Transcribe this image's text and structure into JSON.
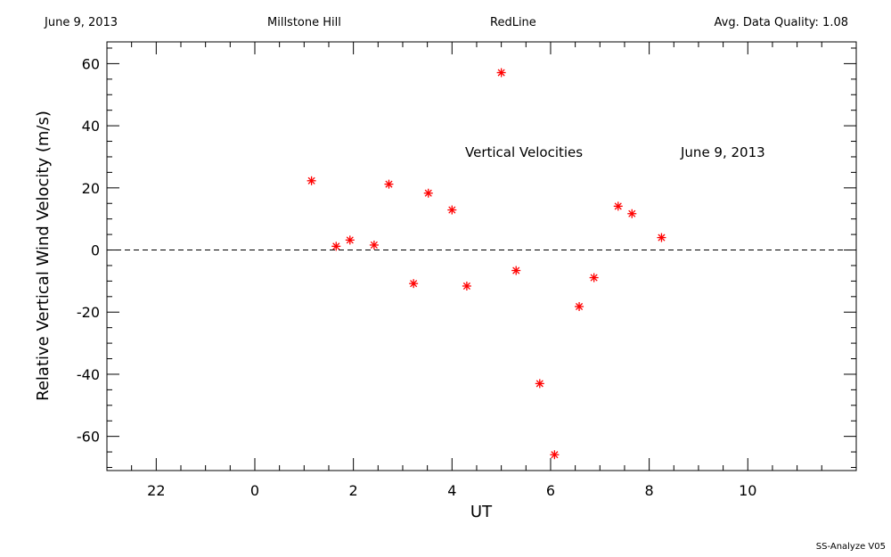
{
  "header": {
    "date": "June 9, 2013",
    "site": "Millstone Hill",
    "line": "RedLine",
    "quality": "Avg. Data Quality: 1.08"
  },
  "footer": "SS-Analyze V05",
  "chart_data": {
    "type": "scatter",
    "xlabel": "UT",
    "ylabel": "Relative Vertical Wind Velocity (m/s)",
    "annotations": [
      "Vertical Velocities",
      "June 9, 2013"
    ],
    "x_tick_labels": [
      "22",
      "0",
      "2",
      "4",
      "6",
      "8",
      "10"
    ],
    "y_ticks": [
      -60,
      -40,
      -20,
      0,
      20,
      40,
      60
    ],
    "xlim": [
      -3,
      12.2
    ],
    "ylim": [
      -71,
      67
    ],
    "zero_line": true,
    "marker_color": "#ff0000",
    "marker": "asterisk",
    "points": [
      {
        "x": 1.15,
        "y": 22.3
      },
      {
        "x": 1.65,
        "y": 1.2
      },
      {
        "x": 1.93,
        "y": 3.2
      },
      {
        "x": 2.42,
        "y": 1.6
      },
      {
        "x": 2.72,
        "y": 21.2
      },
      {
        "x": 3.22,
        "y": -10.8
      },
      {
        "x": 3.52,
        "y": 18.3
      },
      {
        "x": 4.0,
        "y": 12.9
      },
      {
        "x": 4.3,
        "y": -11.6
      },
      {
        "x": 5.0,
        "y": 57.1
      },
      {
        "x": 5.3,
        "y": -6.6
      },
      {
        "x": 5.78,
        "y": -43.0
      },
      {
        "x": 6.08,
        "y": -65.9
      },
      {
        "x": 6.58,
        "y": -18.2
      },
      {
        "x": 6.88,
        "y": -8.9
      },
      {
        "x": 7.37,
        "y": 14.1
      },
      {
        "x": 7.65,
        "y": 11.7
      },
      {
        "x": 8.25,
        "y": 4.0
      }
    ]
  }
}
